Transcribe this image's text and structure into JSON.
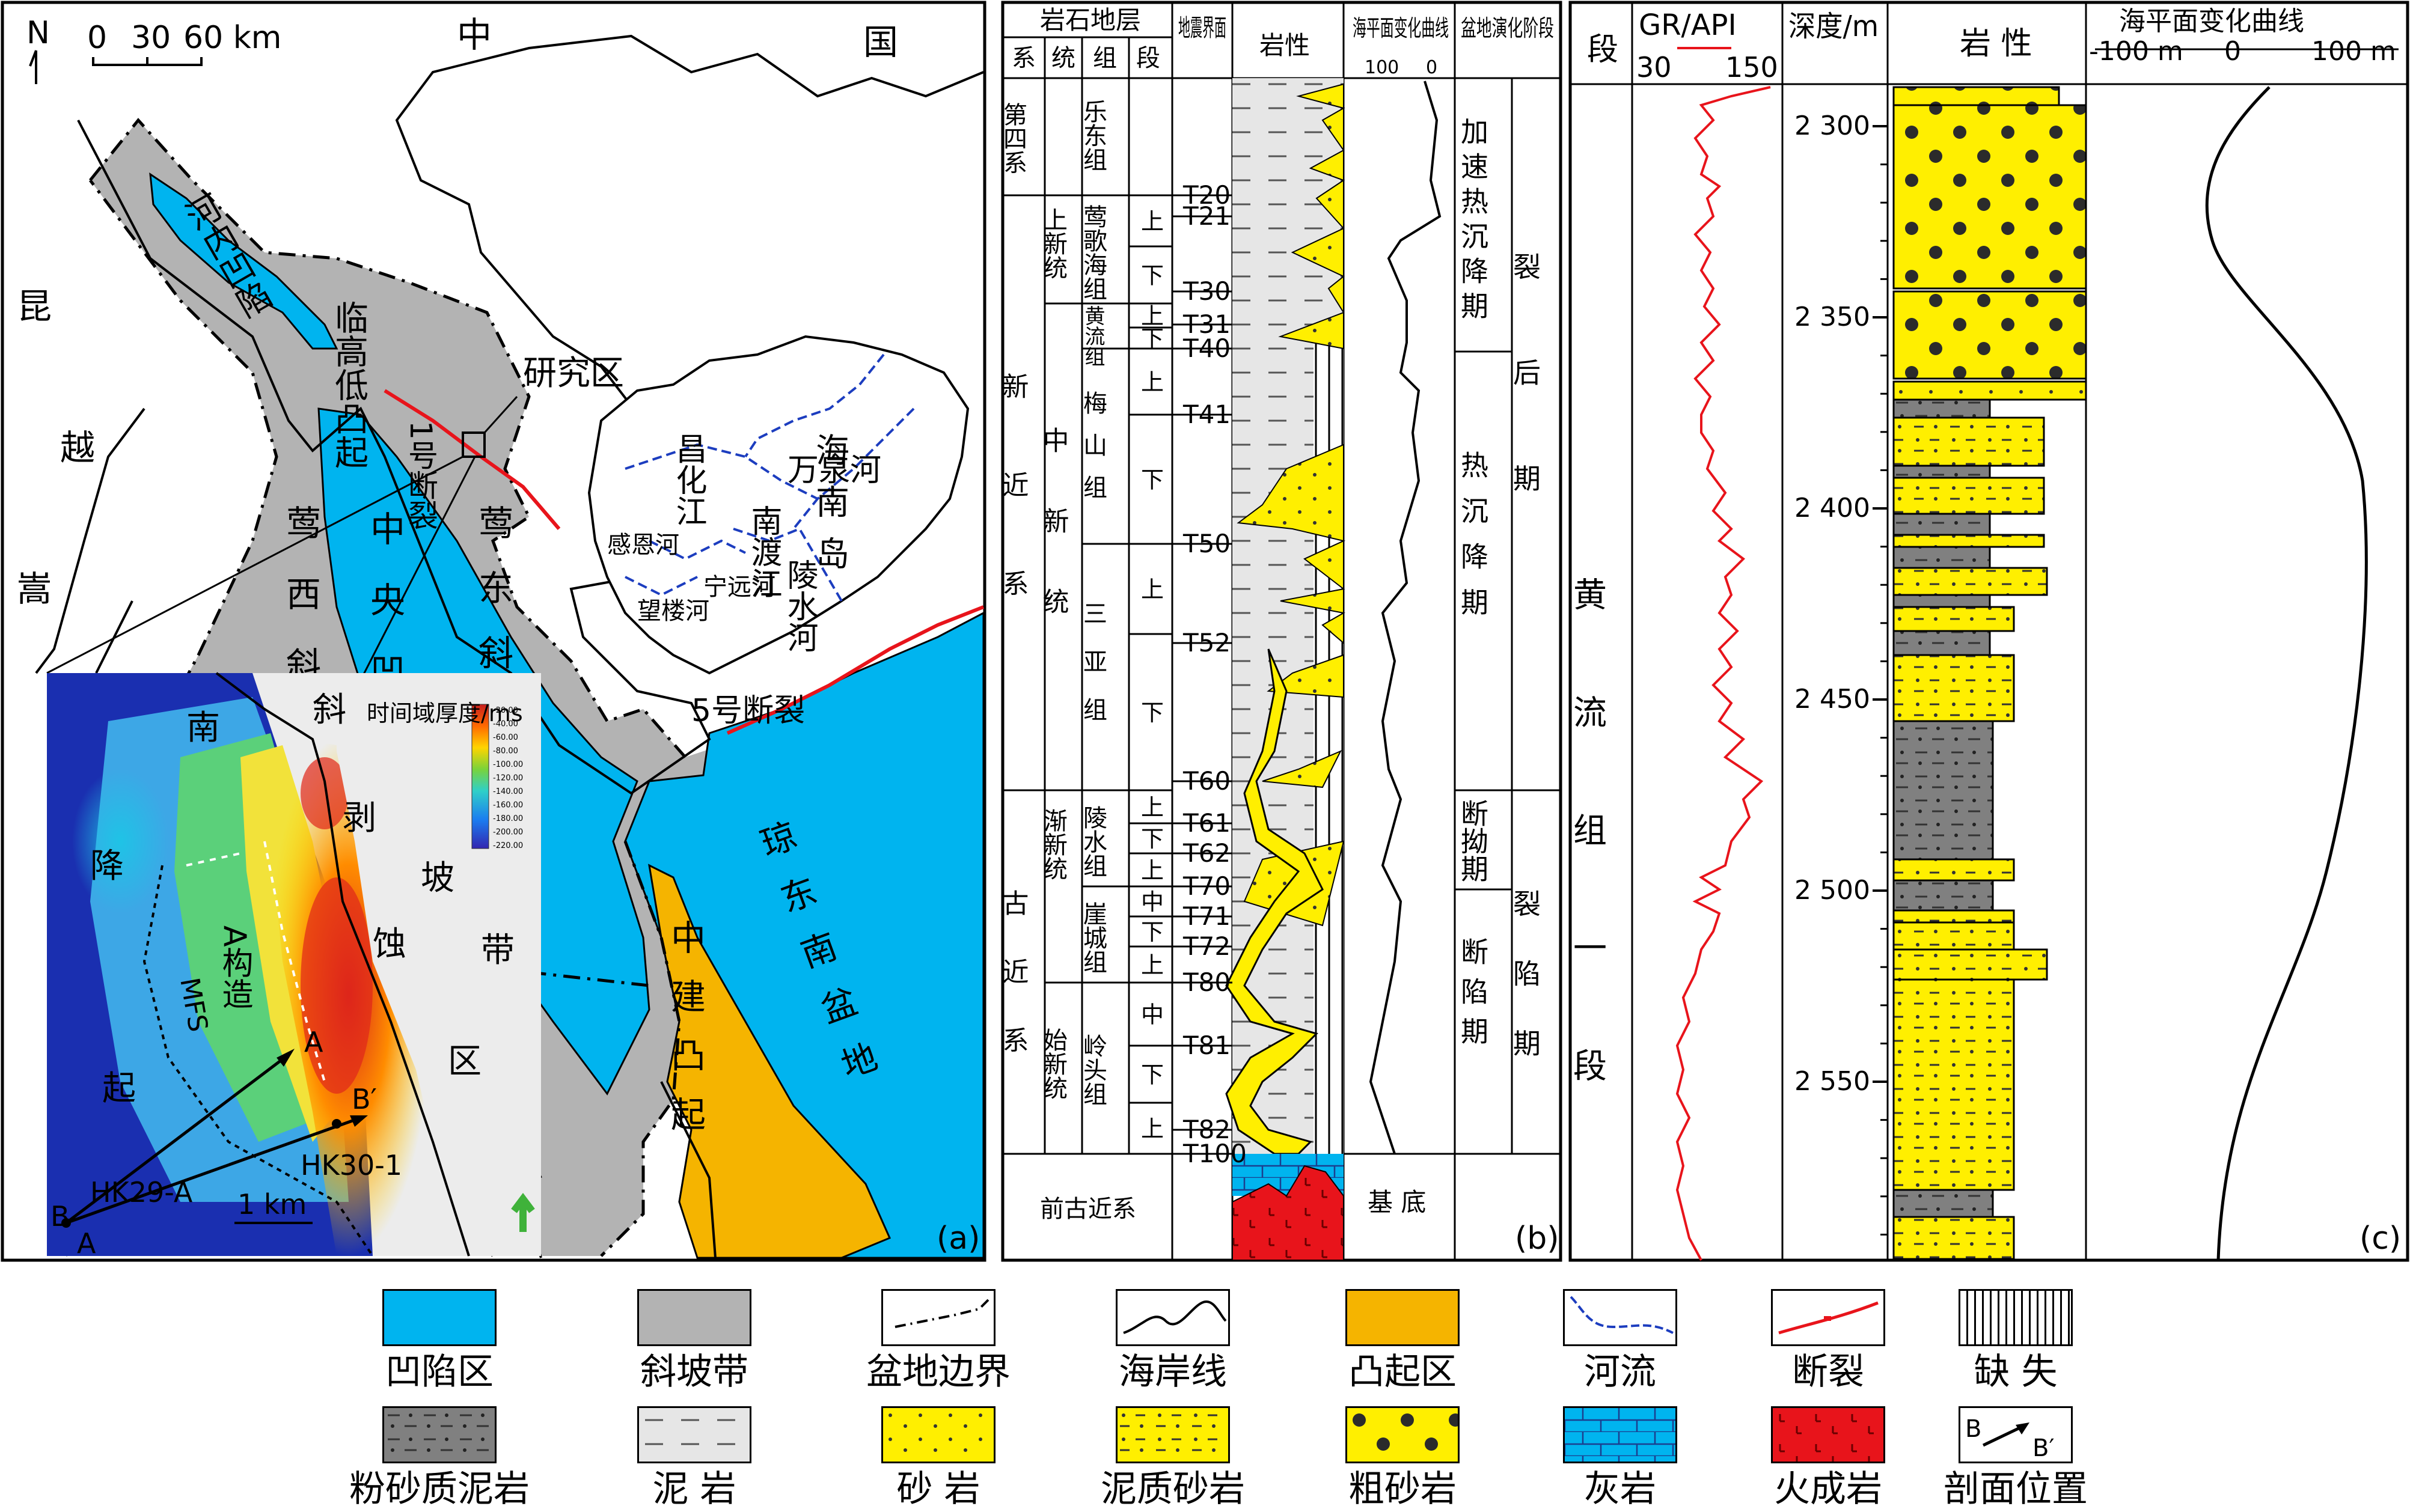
{
  "panel_a": {
    "label": "(a)",
    "north": "N",
    "scale_ticks": [
      "0",
      "30",
      "60 km"
    ],
    "countries": [
      "中",
      "国",
      "昆",
      "越",
      "嵩"
    ],
    "units": [
      {
        "id": "hanoi",
        "text": "河内凹陷"
      },
      {
        "id": "linggao",
        "text": "临高低凸起"
      },
      {
        "id": "yingxi",
        "text": "莺西斜坡带"
      },
      {
        "id": "central",
        "text": "中央凹陷带"
      },
      {
        "id": "yingdong",
        "text": "莺东斜坡带"
      },
      {
        "id": "f1",
        "text": "1号断裂"
      },
      {
        "id": "f5",
        "text": "5号断裂"
      },
      {
        "id": "qdn",
        "text": "琼东南盆地"
      },
      {
        "id": "zj",
        "text": "中建凸起"
      },
      {
        "id": "study",
        "text": "研究区"
      }
    ],
    "hainan": {
      "island": "海南岛",
      "rivers": [
        "南渡江",
        "昌化江",
        "万泉河",
        "陵水河",
        "感恩河",
        "宁远河",
        "望楼河"
      ]
    },
    "inset": {
      "colorbar_title": "时间域厚度/ms",
      "colorbar_ticks": [
        "-20.00",
        "-40.00",
        "-60.00",
        "-80.00",
        "-100.00",
        "-120.00",
        "-140.00",
        "-160.00",
        "-180.00",
        "-200.00",
        "-220.00"
      ],
      "region_labels": [
        "南",
        "降",
        "起",
        "斜",
        "剥",
        "坡",
        "蚀",
        "带",
        "区",
        "A构造",
        "MFS"
      ],
      "wells": [
        "HK29-A",
        "HK30-1"
      ],
      "scale": "1 km",
      "profile_points": [
        "A",
        "A",
        "B",
        "B′"
      ]
    }
  },
  "panel_b": {
    "label": "(b)",
    "headers": {
      "litho": "岩石地层",
      "system": "系",
      "series": "统",
      "formation": "组",
      "member": "段",
      "seismic": "地震界面",
      "lithology": "岩性",
      "sealevel": "海平面变化曲线",
      "sl_ticks": [
        "100",
        "0"
      ],
      "stage": "盆地演化阶段"
    },
    "systems": [
      "第四系",
      "新近系",
      "古近系"
    ],
    "series": [
      "上新统",
      "中新统",
      "渐新统",
      "始新统"
    ],
    "formations": [
      "乐东组",
      "莺歌海组",
      "黄流组",
      "梅山组",
      "三亚组",
      "陵水组",
      "崖城组",
      "岭头组"
    ],
    "members": [
      "上",
      "下",
      "上",
      "下",
      "上",
      "下",
      "上",
      "下",
      "上",
      "下",
      "上",
      "中",
      "下",
      "上",
      "中",
      "下",
      "上",
      "中",
      "下"
    ],
    "seismic": [
      "T20",
      "T21",
      "T30",
      "T31",
      "T40",
      "T41",
      "T50",
      "T52",
      "T60",
      "T61",
      "T62",
      "T70",
      "T71",
      "T72",
      "T80",
      "T81",
      "T82",
      "T100"
    ],
    "pre": "前古近系",
    "basement": "基 底",
    "stages": {
      "post_rift": "裂后期",
      "pr1": "加速热沉降期",
      "pr2": "热沉降期",
      "rift": "裂陷期",
      "r1": "断拗期",
      "r2": "断陷期"
    }
  },
  "panel_c": {
    "label": "(c)",
    "headers": {
      "segment": "段",
      "gr": "GR/API",
      "gr_min": "30",
      "gr_max": "150",
      "depth": "深度/m",
      "lith": "岩 性",
      "sl": "海平面变化曲线",
      "sl_ticks": [
        "-100 m",
        "0",
        "100 m"
      ]
    },
    "segment_text": "黄流组一段",
    "depth_ticks": [
      "2 300",
      "2 350",
      "2 400",
      "2 450",
      "2 500",
      "2 550"
    ]
  },
  "legend": [
    {
      "id": "depression",
      "label": "凹陷区",
      "color": "#00b4ef"
    },
    {
      "id": "slope",
      "label": "斜坡带",
      "color": "#b3b3b3"
    },
    {
      "id": "basin_boundary",
      "label": "盆地边界"
    },
    {
      "id": "coastline",
      "label": "海岸线"
    },
    {
      "id": "uplift",
      "label": "凸起区",
      "color": "#f5b400"
    },
    {
      "id": "river",
      "label": "河流",
      "color": "#1c3dbf"
    },
    {
      "id": "fault",
      "label": "断裂",
      "color": "#e8141b"
    },
    {
      "id": "missing",
      "label": "缺 失"
    },
    {
      "id": "silty_mudstone",
      "label": "粉砂质泥岩",
      "color": "#808080"
    },
    {
      "id": "mudstone",
      "label": "泥 岩",
      "color": "#e6e6e6"
    },
    {
      "id": "sandstone",
      "label": "砂 岩",
      "color": "#ffef00"
    },
    {
      "id": "muddy_sandstone",
      "label": "泥质砂岩",
      "color": "#ffef00"
    },
    {
      "id": "coarse_sandstone",
      "label": "粗砂岩",
      "color": "#ffef00"
    },
    {
      "id": "limestone",
      "label": "灰岩",
      "color": "#00b4ef"
    },
    {
      "id": "igneous",
      "label": "火成岩",
      "color": "#e8141b"
    },
    {
      "id": "section",
      "label": "剖面位置",
      "sample": [
        "B",
        "B′"
      ]
    }
  ]
}
